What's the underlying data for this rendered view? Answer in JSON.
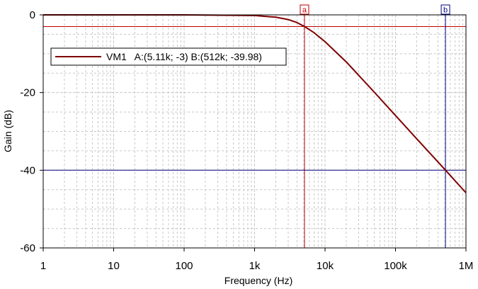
{
  "chart_data": {
    "type": "line",
    "title": "",
    "xlabel": "Frequency (Hz)",
    "ylabel": "Gain (dB)",
    "x_scale": "log",
    "xlim": [
      1,
      1000000
    ],
    "ylim": [
      -60,
      0
    ],
    "x_ticks": [
      1,
      10,
      100,
      1000,
      10000,
      100000,
      1000000
    ],
    "x_tick_labels": [
      "1",
      "10",
      "100",
      "1k",
      "10k",
      "100k",
      "1M"
    ],
    "y_ticks": [
      0,
      -20,
      -40,
      -60
    ],
    "y_tick_labels": [
      "0",
      "-20",
      "-40",
      "-60"
    ],
    "grid": true,
    "legend_position": "top-left",
    "series": [
      {
        "name": "VM1",
        "color": "#800000",
        "x": [
          1,
          10,
          100,
          1000,
          2000,
          3000,
          4000,
          5110,
          7000,
          10000,
          20000,
          50000,
          100000,
          200000,
          512000,
          1000000
        ],
        "y": [
          0,
          0,
          0,
          -0.17,
          -0.6,
          -1.2,
          -1.98,
          -3,
          -4.6,
          -6.9,
          -12.1,
          -19.9,
          -25.9,
          -31.9,
          -39.98,
          -45.8
        ]
      }
    ],
    "cursors": [
      {
        "tag": "a",
        "label": "A",
        "x": 5110,
        "y": -3,
        "x_text": "5.11k",
        "y_text": "-3",
        "color": "#c00000"
      },
      {
        "tag": "b",
        "label": "B",
        "x": 512000,
        "y": -39.98,
        "x_text": "512k",
        "y_text": "-39.98",
        "color": "#000080"
      }
    ],
    "legend_text": "VM1   A:(5.11k; -3) B:(512k; -39.98)"
  }
}
